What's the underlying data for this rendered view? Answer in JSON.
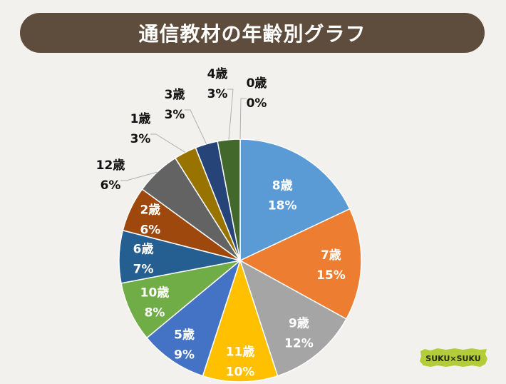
{
  "header": {
    "title": "通信教材の年齢別グラフ"
  },
  "logo": {
    "text": "SUKU×SUKU",
    "color": "#b3cc3a"
  },
  "chart_data": {
    "type": "pie",
    "title": "通信教材の年齢別グラフ",
    "start": "12 o'clock",
    "direction": "clockwise",
    "slices": [
      {
        "label": "8歳",
        "value": 18,
        "display": "18%",
        "color": "#5b9bd5",
        "label_position": "inside",
        "text_color": "#ffffff"
      },
      {
        "label": "7歳",
        "value": 15,
        "display": "15%",
        "color": "#ed7d31",
        "label_position": "inside",
        "text_color": "#ffffff"
      },
      {
        "label": "9歳",
        "value": 12,
        "display": "12%",
        "color": "#a5a5a5",
        "label_position": "inside",
        "text_color": "#ffffff"
      },
      {
        "label": "11歳",
        "value": 10,
        "display": "10%",
        "color": "#ffc000",
        "label_position": "inside",
        "text_color": "#ffffff"
      },
      {
        "label": "5歳",
        "value": 9,
        "display": "9%",
        "color": "#4472c4",
        "label_position": "inside",
        "text_color": "#ffffff"
      },
      {
        "label": "10歳",
        "value": 8,
        "display": "8%",
        "color": "#70ad47",
        "label_position": "inside",
        "text_color": "#ffffff"
      },
      {
        "label": "6歳",
        "value": 7,
        "display": "7%",
        "color": "#255e91",
        "label_position": "inside",
        "text_color": "#ffffff"
      },
      {
        "label": "2歳",
        "value": 6,
        "display": "6%",
        "color": "#9e480e",
        "label_position": "inside",
        "text_color": "#ffffff"
      },
      {
        "label": "12歳",
        "value": 6,
        "display": "6%",
        "color": "#636363",
        "label_position": "outside",
        "text_color": "#111111"
      },
      {
        "label": "1歳",
        "value": 3,
        "display": "3%",
        "color": "#997300",
        "label_position": "outside",
        "text_color": "#111111"
      },
      {
        "label": "3歳",
        "value": 3,
        "display": "3%",
        "color": "#264478",
        "label_position": "outside",
        "text_color": "#111111"
      },
      {
        "label": "4歳",
        "value": 3,
        "display": "3%",
        "color": "#43682b",
        "label_position": "outside",
        "text_color": "#111111"
      },
      {
        "label": "0歳",
        "value": 0,
        "display": "0%",
        "color": "#698ed0",
        "label_position": "outside",
        "text_color": "#111111"
      }
    ]
  }
}
